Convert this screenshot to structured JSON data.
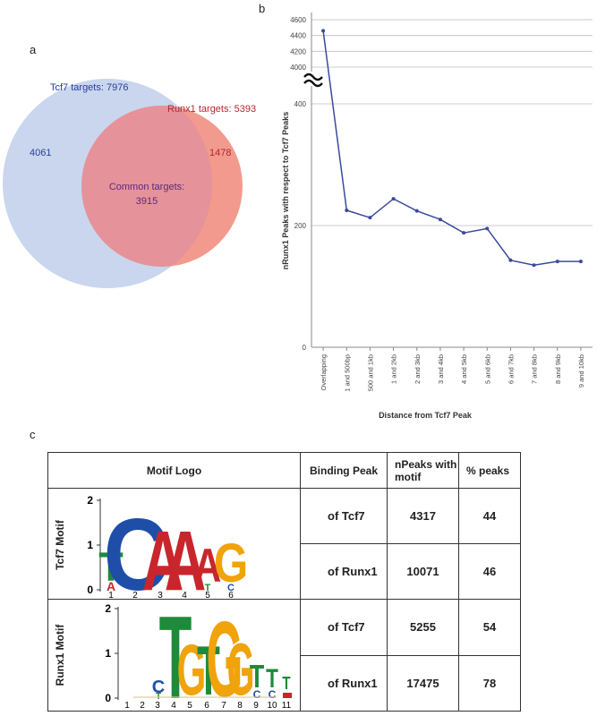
{
  "panels": {
    "a": "a",
    "b": "b",
    "c": "c"
  },
  "venn": {
    "tcf7_label": "Tcf7 targets: 7976",
    "runx1_label": "Runx1 targets: 5393",
    "tcf7_only": "4061",
    "runx1_only": "1478",
    "common_label": "Common targets:",
    "common_value": "3915",
    "colors": {
      "tcf7": "#c9d6ee",
      "runx1": "#f29a8e",
      "overlap": "#e89096",
      "tcf7_text": "#2a3e9b",
      "runx1_text": "#b3272e"
    }
  },
  "chart_data": {
    "type": "line",
    "xlabel": "Distance from Tcf7 Peak",
    "ylabel": "nRunx1 Peaks with respect to Tcf7 Peaks",
    "categories": [
      "Overlapping",
      "1 and 500bp",
      "500 and 1kb",
      "1 and 2kb",
      "2 and 3kb",
      "3 and 4kb",
      "4 and 5kb",
      "5 and 6kb",
      "6 and 7kb",
      "7 and 8kb",
      "8 and 9kb",
      "9 and 10kb"
    ],
    "values": [
      4460,
      225,
      213,
      244,
      224,
      210,
      188,
      195,
      143,
      135,
      141,
      141
    ],
    "axis_break": true,
    "lower_ticks": [
      0,
      200,
      400
    ],
    "upper_ticks": [
      4000,
      4200,
      4400,
      4600
    ],
    "lower_ylim": [
      0,
      400
    ],
    "upper_ylim": [
      4000,
      4600
    ],
    "grid": true,
    "color": "#3a4a9b"
  },
  "table": {
    "headers": {
      "motif": "Motif Logo",
      "peak": "Binding Peak",
      "npeaks": "nPeaks with motif",
      "pct": "% peaks"
    },
    "rows": [
      {
        "motif": "Tcf7 Motif",
        "peak": "of Tcf7",
        "npeaks": "4317",
        "pct": "44"
      },
      {
        "motif": "Tcf7 Motif",
        "peak": "of Runx1",
        "npeaks": "10071",
        "pct": "46"
      },
      {
        "motif": "Runx1 Motif",
        "peak": "of Tcf7",
        "npeaks": "5255",
        "pct": "54"
      },
      {
        "motif": "Runx1 Motif",
        "peak": "of Runx1",
        "npeaks": "17475",
        "pct": "78"
      }
    ],
    "tcf7_logo": {
      "y_ticks": [
        "0",
        "1",
        "2"
      ],
      "positions": [
        "1",
        "2",
        "3",
        "4",
        "5",
        "6"
      ],
      "letters": [
        "T",
        "C",
        "A",
        "A",
        "A",
        "G",
        "A",
        "C",
        "T"
      ]
    },
    "runx1_logo": {
      "y_ticks": [
        "0",
        "1",
        "2"
      ],
      "positions": [
        "1",
        "2",
        "3",
        "4",
        "5",
        "6",
        "7",
        "8",
        "9",
        "10",
        "11"
      ],
      "letters": [
        "T",
        "G",
        "T",
        "G",
        "G",
        "T",
        "T",
        "T",
        "C",
        "C",
        "C"
      ]
    }
  }
}
